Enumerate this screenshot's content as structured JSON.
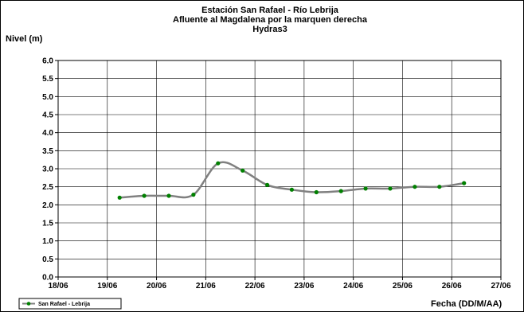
{
  "chart_data": {
    "type": "line",
    "title_lines": [
      "Estación San Rafael - Río Lebrija",
      "Afluente al Magdalena por la marquen derecha",
      "Hydras3"
    ],
    "ylabel": "Nivel (m)",
    "xlabel": "Fecha (DD/M/AA)",
    "ylim": [
      0,
      6
    ],
    "yticks": [
      "0.0",
      "0.5",
      "1.0",
      "1.5",
      "2.0",
      "2.5",
      "3.0",
      "3.5",
      "4.0",
      "4.5",
      "5.0",
      "5.5",
      "6.0"
    ],
    "xlim": [
      "18/06",
      "27/06"
    ],
    "xticks": [
      "18/06",
      "19/06",
      "20/06",
      "21/06",
      "22/06",
      "23/06",
      "24/06",
      "25/06",
      "26/06",
      "27/06"
    ],
    "grid": true,
    "legend": "bottom-left",
    "series": [
      {
        "name": "San Rafael - Lebrija",
        "color": "#808080",
        "marker_color": "#008000",
        "x": [
          "19/06 06:00",
          "19/06 18:00",
          "20/06 06:00",
          "20/06 18:00",
          "21/06 06:00",
          "21/06 18:00",
          "22/06 06:00",
          "22/06 18:00",
          "23/06 06:00",
          "23/06 18:00",
          "24/06 06:00",
          "24/06 18:00",
          "25/06 06:00",
          "25/06 18:00",
          "26/06 06:00"
        ],
        "y": [
          2.2,
          2.25,
          2.25,
          2.28,
          3.15,
          2.95,
          2.55,
          2.42,
          2.35,
          2.38,
          2.45,
          2.45,
          2.5,
          2.5,
          2.6
        ]
      }
    ]
  }
}
